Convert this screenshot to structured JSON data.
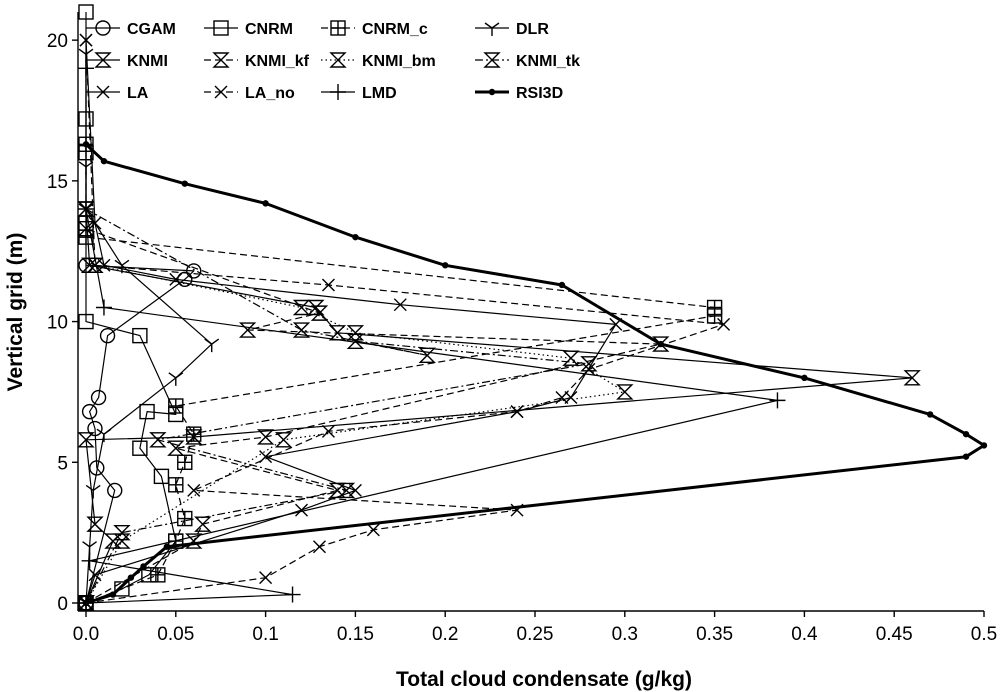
{
  "chart_data": {
    "type": "line",
    "title": "",
    "xlabel": "Total cloud condensate (g/kg)",
    "ylabel": "Vertical grid (m)",
    "xlim": [
      0,
      0.5
    ],
    "ylim": [
      0,
      21
    ],
    "x_ticks": [
      "0.0",
      "0.05",
      "0.1",
      "0.15",
      "0.2",
      "0.25",
      "0.3",
      "0.35",
      "0.4",
      "0.45",
      "0.5"
    ],
    "y_ticks": [
      "0",
      "5",
      "10",
      "15",
      "20"
    ],
    "grid": false,
    "legend_position": "top",
    "series": [
      {
        "name": "CGAM",
        "style": "solid",
        "marker": "circle",
        "x": [
          0,
          0.016,
          0.006,
          0.005,
          0.002,
          0.007,
          0.012,
          0.055,
          0.06,
          0
        ],
        "y": [
          0,
          4,
          4.8,
          6.2,
          6.8,
          7.3,
          9.5,
          11.5,
          11.8,
          12
        ]
      },
      {
        "name": "CNRM",
        "style": "solid",
        "marker": "square",
        "x": [
          0,
          0.02,
          0.035,
          0.05,
          0.042,
          0.03,
          0.034,
          0.05,
          0.03,
          0,
          0,
          0,
          0,
          0
        ],
        "y": [
          0,
          0.5,
          1.0,
          2.2,
          4.5,
          5.5,
          6.8,
          6.7,
          9.5,
          10.0,
          13.5,
          16,
          17.2,
          21
        ]
      },
      {
        "name": "CNRM_c",
        "style": "dashed",
        "marker": "square-cross",
        "x": [
          0,
          0.04,
          0.05,
          0.055,
          0.05,
          0.055,
          0.06,
          0.05,
          0.35,
          0.35,
          0,
          0
        ],
        "y": [
          0,
          1.0,
          2.2,
          3.0,
          4.2,
          5.0,
          6.0,
          7.0,
          10.2,
          10.5,
          13.0,
          16.3
        ]
      },
      {
        "name": "DLR",
        "style": "solid",
        "marker": "tri",
        "x": [
          0,
          0.002,
          0.004,
          0.01,
          0.05,
          0.07,
          0.02,
          0,
          0,
          0
        ],
        "y": [
          0,
          2.0,
          4.0,
          6.0,
          8.0,
          9.2,
          12.0,
          14.0,
          15.5,
          19.5
        ]
      },
      {
        "name": "KNMI",
        "style": "solid",
        "marker": "hourglass",
        "x": [
          0,
          0.015,
          0.005,
          0,
          0.06,
          0.46,
          0.14,
          0.128,
          0.002,
          0
        ],
        "y": [
          0,
          2.2,
          2.8,
          5.8,
          5.9,
          8.0,
          9.6,
          10.5,
          12.0,
          14.0
        ]
      },
      {
        "name": "KNMI_kf",
        "style": "dashed",
        "marker": "hourglass",
        "x": [
          0,
          0.06,
          0.065,
          0.14,
          0.05,
          0.1,
          0.32,
          0.09,
          0.13,
          0
        ],
        "y": [
          0,
          2.2,
          2.8,
          4.0,
          5.5,
          5.9,
          9.2,
          9.7,
          10.3,
          13.3
        ]
      },
      {
        "name": "KNMI_bm",
        "style": "dotted",
        "marker": "hourglass",
        "x": [
          0,
          0.02,
          0.11,
          0.3,
          0.27,
          0.15,
          0.12,
          0.005
        ],
        "y": [
          0,
          2.2,
          5.8,
          7.5,
          8.7,
          9.6,
          10.5,
          12.0
        ]
      },
      {
        "name": "KNMI_tk",
        "style": "dashdot",
        "marker": "hourglass",
        "x": [
          0,
          0.02,
          0.145,
          0.04,
          0.28,
          0.15,
          0.19,
          0.12,
          0
        ],
        "y": [
          0,
          2.5,
          4.0,
          5.8,
          8.5,
          9.3,
          8.8,
          9.7,
          14.0
        ]
      },
      {
        "name": "LA",
        "style": "solid",
        "marker": "x",
        "x": [
          0,
          0.005,
          0.12,
          0.15,
          0.1,
          0.24,
          0.27,
          0.295,
          0.175,
          0.05,
          0.01,
          0.005,
          0
        ],
        "y": [
          0,
          1.0,
          3.3,
          4.0,
          5.2,
          6.8,
          7.3,
          9.9,
          10.6,
          11.5,
          12.0,
          13.5,
          20
        ]
      },
      {
        "name": "LA_no",
        "style": "dashed",
        "marker": "x",
        "x": [
          0,
          0.1,
          0.13,
          0.16,
          0.24,
          0.06,
          0.135,
          0.24,
          0.265,
          0.28,
          0.355,
          0.135,
          0.005,
          0
        ],
        "y": [
          0,
          0.9,
          2.0,
          2.6,
          3.3,
          4.0,
          6.1,
          6.8,
          7.3,
          8.3,
          9.9,
          11.3,
          12.0,
          20
        ]
      },
      {
        "name": "LMD",
        "style": "solid",
        "marker": "plus",
        "x": [
          0,
          0.115,
          0.002,
          0.385,
          0.01,
          0,
          0
        ],
        "y": [
          0,
          0.3,
          1.5,
          7.2,
          10.5,
          14.0,
          19
        ]
      },
      {
        "name": "RSI3D",
        "style": "thick",
        "marker": "dot",
        "x": [
          0,
          0.015,
          0.025,
          0.032,
          0.045,
          0.49,
          0.5,
          0.49,
          0.47,
          0.4,
          0.32,
          0.265,
          0.2,
          0.15,
          0.1,
          0.055,
          0.01,
          0
        ],
        "y": [
          0,
          0.3,
          0.9,
          1.3,
          2.0,
          5.2,
          5.6,
          6.0,
          6.7,
          8.0,
          9.2,
          11.3,
          12.0,
          13.0,
          14.2,
          14.9,
          15.7,
          16.3
        ]
      }
    ]
  }
}
